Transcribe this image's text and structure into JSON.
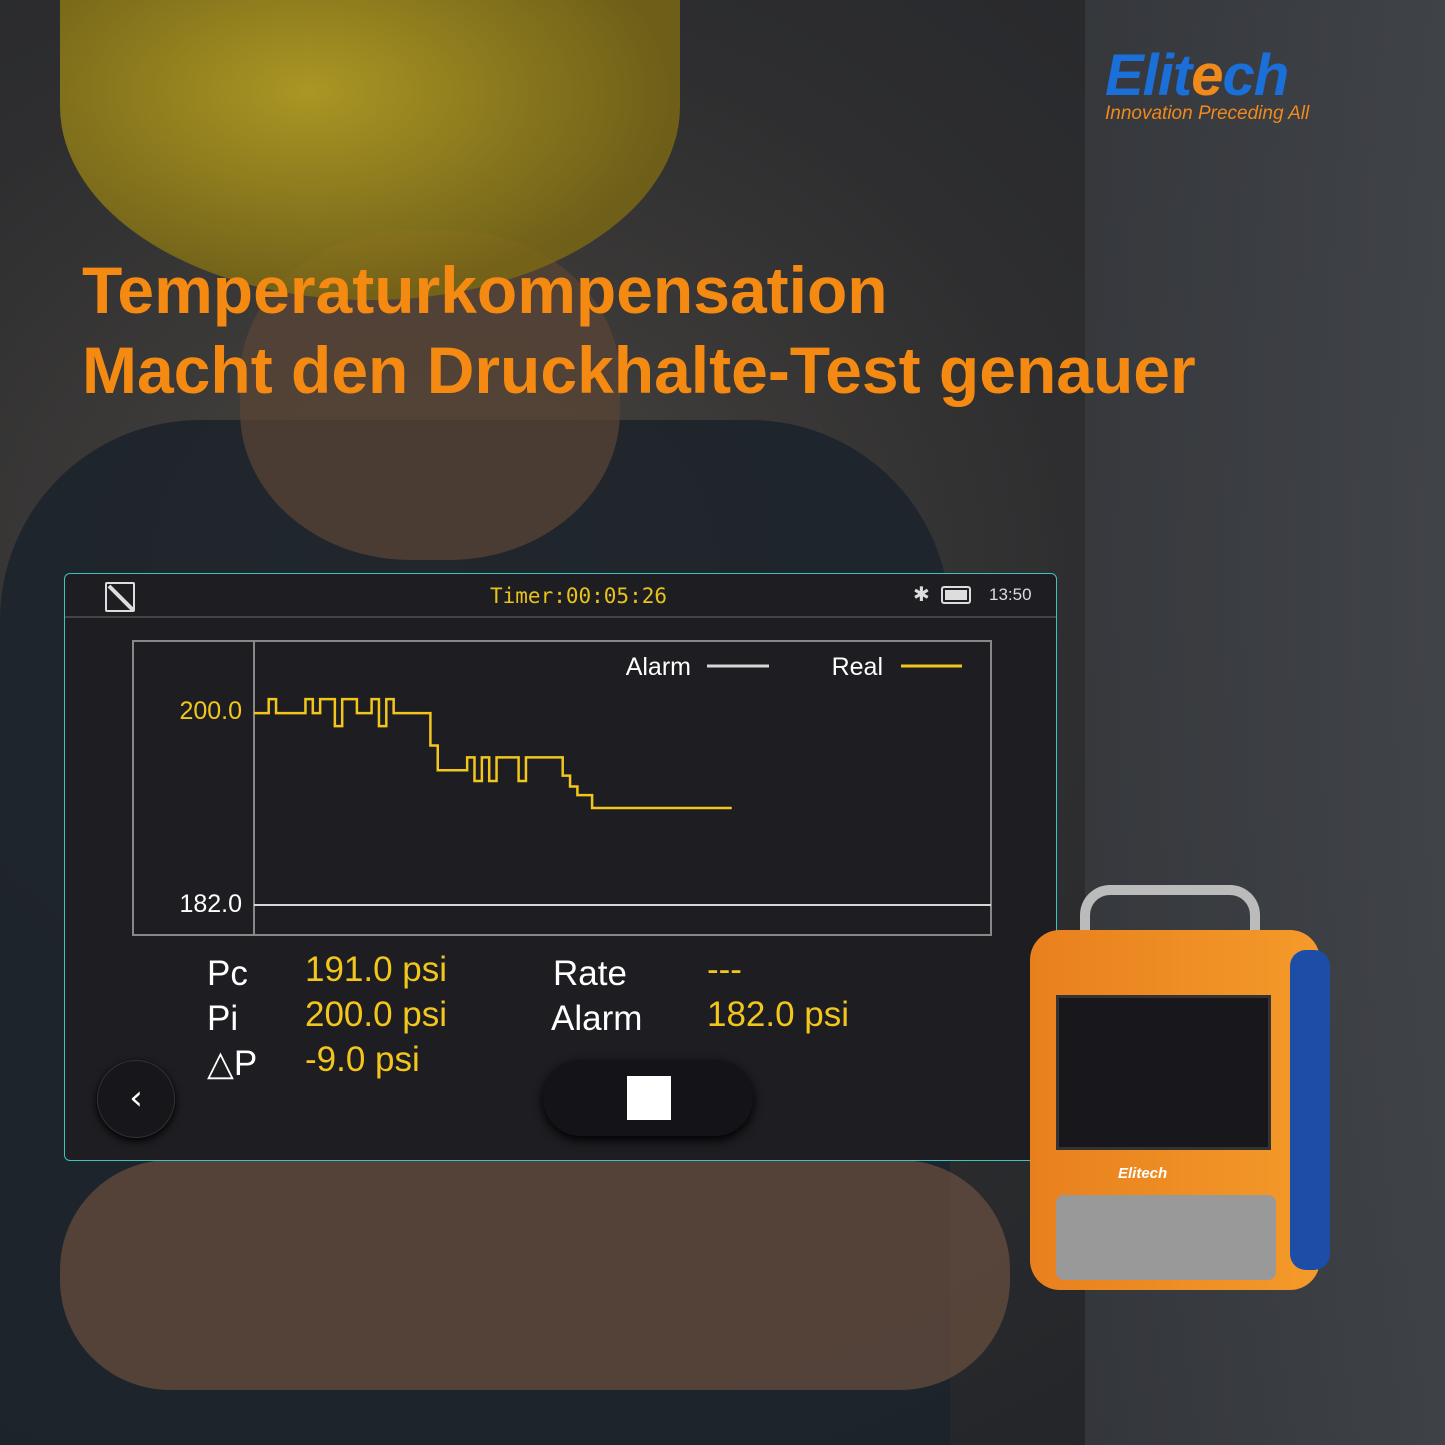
{
  "brand": {
    "name": "Elitech",
    "tagline": "Innovation Preceding All",
    "color": "#1a6fd8",
    "accent": "#f08a1c"
  },
  "headline": {
    "line1": "Temperaturkompensation",
    "line2": "Macht den Druckhalte-Test genauer",
    "color": "#f58a12"
  },
  "screen": {
    "status_bar": {
      "edit_icon": "edit-icon",
      "timer": "Timer:00:05:26",
      "bluetooth_icon": "bluetooth-icon",
      "battery_icon": "battery-icon",
      "time": "13:50"
    },
    "readings": {
      "pc_label": "Pc",
      "pc_value": "191.0 psi",
      "pi_label": "Pi",
      "pi_value": "200.0 psi",
      "dp_label": "△P",
      "dp_value": "-9.0 psi",
      "rate_label": "Rate",
      "rate_value": "---",
      "alarm_label": "Alarm",
      "alarm_value": "182.0 psi"
    },
    "back_icon": "chevron-left-icon",
    "stop_icon": "stop-icon"
  },
  "chart_data": {
    "type": "line",
    "ylim": [
      182.0,
      200.0
    ],
    "yticks": [
      "200.0",
      "182.0"
    ],
    "legend": "top-right",
    "series": [
      {
        "name": "Alarm",
        "color": "#d8d8d8",
        "values": [
          182.0,
          182.0
        ]
      },
      {
        "name": "Real",
        "color": "#f3c61b",
        "values": [
          199.8,
          199.8,
          201.1,
          199.8,
          199.8,
          199.8,
          199.8,
          201.1,
          199.8,
          201.1,
          201.1,
          198.6,
          201.1,
          201.1,
          199.8,
          199.8,
          201.1,
          198.6,
          201.1,
          199.8,
          199.8,
          199.8,
          199.8,
          199.8,
          196.8,
          194.5,
          194.5,
          194.5,
          194.5,
          195.7,
          193.5,
          195.7,
          193.5,
          195.7,
          195.7,
          195.7,
          193.5,
          195.7,
          195.7,
          195.7,
          195.7,
          195.7,
          194.0,
          193.0,
          192.2,
          192.2,
          191.0,
          191.0,
          191.0,
          191.0,
          191.0,
          191.0,
          191.0,
          191.0,
          191.0,
          191.0,
          191.0,
          191.0,
          191.0,
          191.0,
          191.0,
          191.0,
          191.0,
          191.0,
          191.0
        ]
      }
    ]
  }
}
